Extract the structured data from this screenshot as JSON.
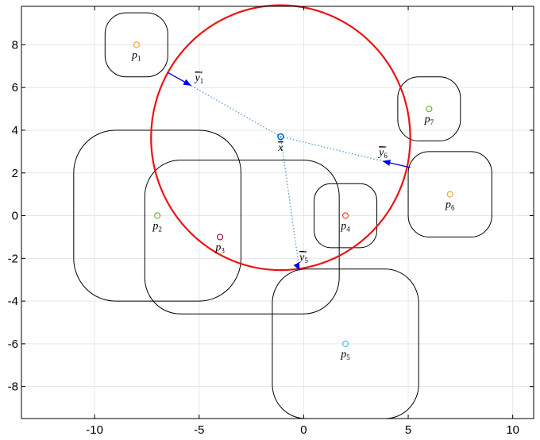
{
  "chart_data": {
    "type": "scatter",
    "xlim": [
      -13.5,
      11
    ],
    "ylim": [
      -9.5,
      9.8
    ],
    "x_ticks": [
      -10,
      -5,
      0,
      5,
      10
    ],
    "y_ticks": [
      -8,
      -6,
      -4,
      -2,
      0,
      2,
      4,
      6,
      8
    ],
    "x_tick_labels": [
      "-10",
      "-5",
      "0",
      "5",
      "10"
    ],
    "y_tick_labels": [
      "-8",
      "-6",
      "-4",
      "-2",
      "0",
      "2",
      "4",
      "6",
      "8"
    ],
    "grid": true,
    "points": [
      {
        "label_base": "p",
        "label_sub": "1",
        "x": -8,
        "y": 8,
        "color": "#EDB120",
        "box": [
          -9.5,
          6.5,
          -6.5,
          9.5
        ],
        "radius": 1.0
      },
      {
        "label_base": "p",
        "label_sub": "2",
        "x": -7,
        "y": 0,
        "color": "#77AC30",
        "box": [
          -11,
          -4,
          -3,
          4
        ],
        "radius": 2.0
      },
      {
        "label_base": "p",
        "label_sub": "3",
        "x": -4,
        "y": -1,
        "color": "#A2142F",
        "box": [
          -7.6,
          -4.6,
          1.7,
          2.6
        ],
        "radius": 1.7
      },
      {
        "label_base": "p",
        "label_sub": "4",
        "x": 2,
        "y": 0,
        "color": "#D95319",
        "box": [
          0.5,
          -1.5,
          3.5,
          1.5
        ],
        "radius": 0.8
      },
      {
        "label_base": "p",
        "label_sub": "5",
        "x": 2,
        "y": -6,
        "color": "#4DBEEE",
        "box": [
          -1.5,
          -9.5,
          5.5,
          -2.5
        ],
        "radius": 1.6
      },
      {
        "label_base": "p",
        "label_sub": "6",
        "x": 7,
        "y": 1,
        "color": "#EDB120",
        "box": [
          5,
          -1,
          9,
          3
        ],
        "radius": 1.0
      },
      {
        "label_base": "p",
        "label_sub": "7",
        "x": 6,
        "y": 5,
        "color": "#77AC30",
        "box": [
          4.5,
          3.5,
          7.5,
          6.5
        ],
        "radius": 1.0
      }
    ],
    "center": {
      "label": "x",
      "x": -1.1,
      "y": 3.7,
      "color": "#0072BD"
    },
    "circle": {
      "cx": -1.1,
      "cy": 3.65,
      "r": 6.2,
      "color": "#EE1111"
    },
    "vectors": [
      {
        "label_base": "y",
        "label_sub": "1",
        "label_sup": "*",
        "from": [
          -6.5,
          6.7
        ],
        "to": [
          -5.4,
          6.1
        ],
        "label_at": [
          -5.2,
          6.3
        ]
      },
      {
        "label_base": "y",
        "label_sub": "5",
        "label_sup": "*",
        "from": [
          -0.3,
          -2.35
        ],
        "to": [
          -0.2,
          -2.55
        ],
        "label_at": [
          -0.2,
          -2.1
        ]
      },
      {
        "label_base": "y",
        "label_sub": "6",
        "label_sup": "*",
        "from": [
          5.1,
          2.25
        ],
        "to": [
          3.8,
          2.55
        ],
        "label_at": [
          3.6,
          2.8
        ]
      }
    ],
    "colors": {
      "circle": "#EE1111",
      "arrows": "#0000EE",
      "dotted": "#4A90D9",
      "grid": "#e6e6e6",
      "boxes": "#000000"
    }
  }
}
